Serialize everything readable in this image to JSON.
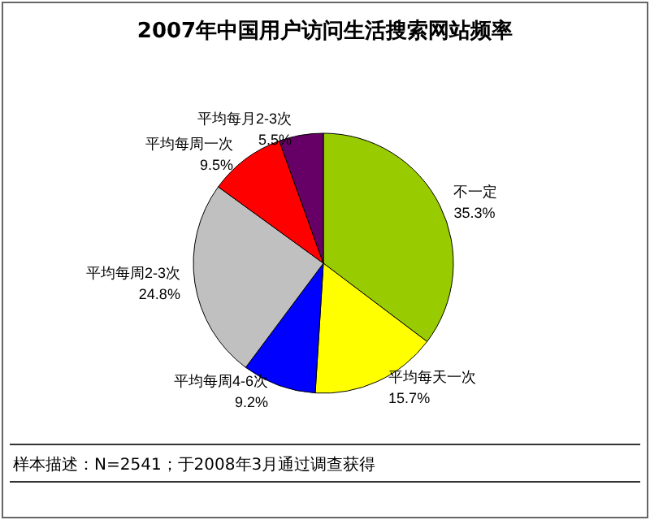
{
  "chart_data": {
    "type": "pie",
    "title": "2007年中国用户访问生活搜索网站频率",
    "categories": [
      "不一定",
      "平均每天一次",
      "平均每周4-6次",
      "平均每周2-3次",
      "平均每周一次",
      "平均每月2-3次"
    ],
    "values": [
      35.3,
      15.7,
      9.2,
      24.8,
      9.5,
      5.5
    ],
    "colors": [
      "#99cc00",
      "#ffff00",
      "#0000ff",
      "#c0c0c0",
      "#ff0000",
      "#660066"
    ],
    "value_labels": [
      "35.3%",
      "15.7%",
      "9.2%",
      "24.8%",
      "9.5%",
      "5.5%"
    ],
    "legend": false,
    "annotations": [
      "样本描述：N=2541；于2008年3月通过调查获得"
    ]
  }
}
